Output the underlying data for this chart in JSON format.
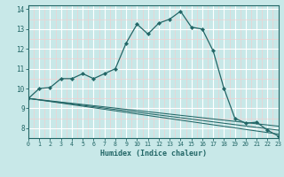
{
  "xlabel": "Humidex (Indice chaleur)",
  "xlim": [
    0,
    23
  ],
  "ylim": [
    7.5,
    14.2
  ],
  "yticks": [
    8,
    9,
    10,
    11,
    12,
    13,
    14
  ],
  "xticks": [
    0,
    1,
    2,
    3,
    4,
    5,
    6,
    7,
    8,
    9,
    10,
    11,
    12,
    13,
    14,
    15,
    16,
    17,
    18,
    19,
    20,
    21,
    22,
    23
  ],
  "bg_color": "#c8e8e8",
  "grid_color_major": "#ffffff",
  "grid_color_minor": "#f0d0d0",
  "line_color": "#226666",
  "line1": [
    [
      0,
      9.5
    ],
    [
      1,
      10.0
    ],
    [
      2,
      10.05
    ],
    [
      3,
      10.5
    ],
    [
      4,
      10.5
    ],
    [
      5,
      10.75
    ],
    [
      6,
      10.5
    ],
    [
      7,
      10.75
    ],
    [
      8,
      11.0
    ],
    [
      9,
      12.3
    ],
    [
      10,
      13.25
    ],
    [
      11,
      12.75
    ],
    [
      12,
      13.3
    ],
    [
      13,
      13.5
    ],
    [
      14,
      13.9
    ],
    [
      15,
      13.1
    ],
    [
      16,
      13.0
    ],
    [
      17,
      11.9
    ],
    [
      18,
      10.0
    ],
    [
      19,
      8.5
    ],
    [
      20,
      8.25
    ],
    [
      21,
      8.3
    ],
    [
      22,
      7.9
    ],
    [
      23,
      7.6
    ]
  ],
  "trend_lines": [
    [
      [
        0,
        9.5
      ],
      [
        23,
        8.1
      ]
    ],
    [
      [
        0,
        9.5
      ],
      [
        23,
        7.9
      ]
    ],
    [
      [
        0,
        9.5
      ],
      [
        23,
        7.7
      ]
    ]
  ]
}
